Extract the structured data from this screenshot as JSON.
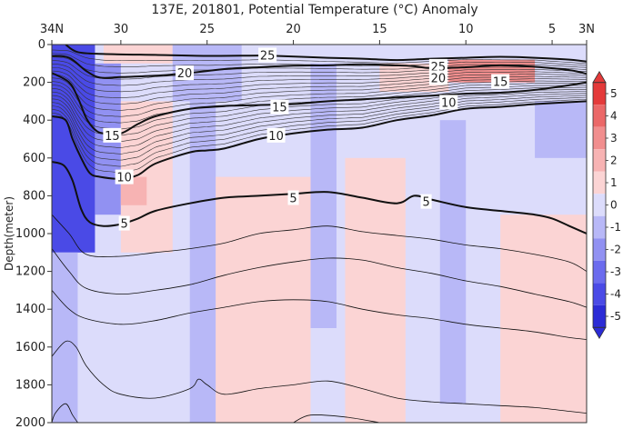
{
  "chart_data": {
    "type": "heatmap",
    "title": "137E, 201801, Potential Temperature (°C) Anomaly",
    "xlabel": "",
    "ylabel": "Depth(meter)",
    "x_axis": {
      "range": [
        34,
        3
      ],
      "ticks": [
        34,
        30,
        25,
        20,
        15,
        10,
        5,
        3
      ],
      "tick_labels": [
        "34N",
        "30",
        "25",
        "20",
        "15",
        "10",
        "5",
        "3N"
      ]
    },
    "y_axis": {
      "range": [
        0,
        2000
      ],
      "reversed": true,
      "ticks": [
        0,
        200,
        400,
        600,
        800,
        1000,
        1200,
        1400,
        1600,
        1800,
        2000
      ]
    },
    "colorbar": {
      "range": [
        -5,
        5
      ],
      "ticks": [
        -5,
        -4,
        -3,
        -2,
        -1,
        0,
        1,
        2,
        3,
        4,
        5
      ],
      "placement": "right",
      "colors": {
        "-5": "#2b2bd6",
        "-4": "#4a4ae6",
        "-3": "#6b6bee",
        "-2": "#9191f2",
        "-1": "#b8b8f7",
        "0": "#dcdcfb",
        "1": "#fbd4d4",
        "2": "#f7b3b3",
        "3": "#f18e8e",
        "4": "#eb6868",
        "5": "#e43a3a"
      }
    },
    "anomaly_regions": [
      {
        "lat": [
          34,
          31.5
        ],
        "depth": [
          0,
          1100
        ],
        "value": -4.5
      },
      {
        "lat": [
          34,
          32.5
        ],
        "depth": [
          1100,
          2000
        ],
        "value": -1.5
      },
      {
        "lat": [
          31.5,
          30
        ],
        "depth": [
          100,
          900
        ],
        "value": -2
      },
      {
        "lat": [
          31,
          27
        ],
        "depth": [
          0,
          100
        ],
        "value": 1
      },
      {
        "lat": [
          27,
          23
        ],
        "depth": [
          0,
          300
        ],
        "value": -1
      },
      {
        "lat": [
          30,
          27
        ],
        "depth": [
          300,
          1100
        ],
        "value": 1
      },
      {
        "lat": [
          26,
          24.5
        ],
        "depth": [
          100,
          2000
        ],
        "value": -1
      },
      {
        "lat": [
          24.5,
          19
        ],
        "depth": [
          700,
          2000
        ],
        "value": 1
      },
      {
        "lat": [
          19,
          17.5
        ],
        "depth": [
          100,
          1500
        ],
        "value": -1
      },
      {
        "lat": [
          17,
          13.5
        ],
        "depth": [
          600,
          2000
        ],
        "value": 1
      },
      {
        "lat": [
          11.5,
          10
        ],
        "depth": [
          400,
          1900
        ],
        "value": -1
      },
      {
        "lat": [
          8,
          3
        ],
        "depth": [
          900,
          2000
        ],
        "value": 1
      },
      {
        "lat": [
          15,
          11
        ],
        "depth": [
          100,
          250
        ],
        "value": 1
      },
      {
        "lat": [
          11,
          6
        ],
        "depth": [
          80,
          200
        ],
        "value": 3
      },
      {
        "lat": [
          6,
          3
        ],
        "depth": [
          300,
          600
        ],
        "value": -1
      },
      {
        "lat": [
          30,
          28.5
        ],
        "depth": [
          700,
          850
        ],
        "value": 2
      }
    ],
    "contours": [
      {
        "level": 25,
        "labeled": true,
        "bold": true,
        "points": [
          [
            33.2,
            0
          ],
          [
            32.5,
            40
          ],
          [
            31,
            50
          ],
          [
            28,
            55
          ],
          [
            25,
            60
          ],
          [
            22,
            58
          ],
          [
            21,
            60
          ],
          [
            18,
            70
          ],
          [
            16,
            75
          ],
          [
            14,
            82
          ],
          [
            12,
            75
          ],
          [
            10,
            70
          ],
          [
            8,
            65
          ],
          [
            6,
            70
          ],
          [
            4,
            80
          ],
          [
            3,
            90
          ]
        ]
      },
      {
        "level": 20,
        "labeled": true,
        "bold": true,
        "points": [
          [
            34,
            60
          ],
          [
            33,
            70
          ],
          [
            32,
            140
          ],
          [
            31.2,
            175
          ],
          [
            30,
            172
          ],
          [
            28,
            165
          ],
          [
            26,
            150
          ],
          [
            24,
            130
          ],
          [
            22,
            120
          ],
          [
            20,
            112
          ],
          [
            18,
            110
          ],
          [
            16,
            105
          ],
          [
            14,
            110
          ],
          [
            13,
            115
          ],
          [
            12,
            125
          ],
          [
            10,
            120
          ],
          [
            8,
            110
          ],
          [
            6,
            118
          ],
          [
            4,
            135
          ],
          [
            3,
            155
          ]
        ]
      },
      {
        "level": 15,
        "labeled": true,
        "bold": true,
        "points": [
          [
            34,
            150
          ],
          [
            33,
            200
          ],
          [
            32.5,
            280
          ],
          [
            32,
            390
          ],
          [
            31.5,
            450
          ],
          [
            31,
            470
          ],
          [
            30,
            470
          ],
          [
            29,
            420
          ],
          [
            28,
            380
          ],
          [
            26,
            340
          ],
          [
            24,
            325
          ],
          [
            22,
            320
          ],
          [
            20,
            315
          ],
          [
            18,
            300
          ],
          [
            16,
            290
          ],
          [
            14,
            280
          ],
          [
            12,
            270
          ],
          [
            10,
            260
          ],
          [
            8,
            255
          ],
          [
            6,
            240
          ],
          [
            4,
            215
          ],
          [
            3,
            200
          ]
        ]
      },
      {
        "level": 10,
        "labeled": true,
        "bold": true,
        "points": [
          [
            34,
            380
          ],
          [
            33.2,
            400
          ],
          [
            32.8,
            500
          ],
          [
            32.3,
            600
          ],
          [
            31.8,
            680
          ],
          [
            31.2,
            700
          ],
          [
            30,
            710
          ],
          [
            29,
            690
          ],
          [
            28,
            630
          ],
          [
            26,
            570
          ],
          [
            25,
            560
          ],
          [
            24,
            550
          ],
          [
            22,
            500
          ],
          [
            20,
            470
          ],
          [
            18,
            450
          ],
          [
            16,
            440
          ],
          [
            14,
            400
          ],
          [
            12,
            375
          ],
          [
            10,
            340
          ],
          [
            8,
            330
          ],
          [
            6,
            315
          ],
          [
            4,
            305
          ],
          [
            3,
            300
          ]
        ]
      },
      {
        "level": 5,
        "labeled": true,
        "bold": true,
        "points": [
          [
            34,
            620
          ],
          [
            33.3,
            640
          ],
          [
            32.8,
            720
          ],
          [
            32.3,
            870
          ],
          [
            31.8,
            940
          ],
          [
            31,
            960
          ],
          [
            30,
            950
          ],
          [
            29,
            920
          ],
          [
            28,
            880
          ],
          [
            26,
            840
          ],
          [
            24,
            810
          ],
          [
            22,
            800
          ],
          [
            20,
            790
          ],
          [
            18,
            780
          ],
          [
            16,
            810
          ],
          [
            14,
            840
          ],
          [
            13,
            800
          ],
          [
            12,
            820
          ],
          [
            10,
            860
          ],
          [
            8,
            880
          ],
          [
            6,
            900
          ],
          [
            5,
            920
          ],
          [
            4,
            960
          ],
          [
            3,
            1000
          ]
        ]
      },
      {
        "level": null,
        "labeled": false,
        "bold": false,
        "points": [
          [
            34,
            900
          ],
          [
            33,
            1000
          ],
          [
            32,
            1110
          ],
          [
            30,
            1120
          ],
          [
            28,
            1100
          ],
          [
            26,
            1080
          ],
          [
            24,
            1050
          ],
          [
            22,
            1000
          ],
          [
            20,
            980
          ],
          [
            18,
            960
          ],
          [
            16,
            990
          ],
          [
            14,
            1010
          ],
          [
            12,
            1030
          ],
          [
            10,
            1060
          ],
          [
            8,
            1080
          ],
          [
            6,
            1110
          ],
          [
            4,
            1150
          ],
          [
            3,
            1200
          ]
        ]
      },
      {
        "level": null,
        "labeled": false,
        "bold": false,
        "points": [
          [
            34,
            1080
          ],
          [
            33,
            1200
          ],
          [
            32,
            1290
          ],
          [
            30,
            1320
          ],
          [
            28,
            1300
          ],
          [
            26,
            1270
          ],
          [
            24,
            1220
          ],
          [
            22,
            1180
          ],
          [
            20,
            1150
          ],
          [
            18,
            1130
          ],
          [
            16,
            1140
          ],
          [
            14,
            1180
          ],
          [
            12,
            1210
          ],
          [
            10,
            1250
          ],
          [
            8,
            1280
          ],
          [
            6,
            1320
          ],
          [
            4,
            1360
          ],
          [
            3,
            1390
          ]
        ]
      },
      {
        "level": null,
        "labeled": false,
        "bold": false,
        "points": [
          [
            34,
            1300
          ],
          [
            33,
            1400
          ],
          [
            32,
            1450
          ],
          [
            30,
            1480
          ],
          [
            28,
            1460
          ],
          [
            26,
            1420
          ],
          [
            24,
            1390
          ],
          [
            22,
            1360
          ],
          [
            20,
            1350
          ],
          [
            18,
            1360
          ],
          [
            16,
            1400
          ],
          [
            14,
            1430
          ],
          [
            12,
            1450
          ],
          [
            10,
            1480
          ],
          [
            8,
            1500
          ],
          [
            6,
            1520
          ],
          [
            4,
            1550
          ],
          [
            3,
            1560
          ]
        ]
      },
      {
        "level": null,
        "labeled": false,
        "bold": false,
        "points": [
          [
            34,
            1650
          ],
          [
            33.2,
            1570
          ],
          [
            32.6,
            1600
          ],
          [
            32,
            1700
          ],
          [
            31,
            1800
          ],
          [
            30,
            1850
          ],
          [
            28,
            1870
          ],
          [
            26,
            1820
          ],
          [
            25.5,
            1770
          ],
          [
            25,
            1800
          ],
          [
            24,
            1850
          ],
          [
            22,
            1820
          ],
          [
            20,
            1800
          ],
          [
            18,
            1780
          ],
          [
            16,
            1820
          ],
          [
            14,
            1870
          ],
          [
            12,
            1890
          ],
          [
            10,
            1900
          ],
          [
            8,
            1910
          ],
          [
            6,
            1920
          ],
          [
            4,
            1940
          ],
          [
            3,
            1950
          ]
        ]
      },
      {
        "level": null,
        "labeled": false,
        "bold": false,
        "points": [
          [
            34,
            2000
          ],
          [
            33.8,
            1950
          ],
          [
            33.2,
            1900
          ],
          [
            32.8,
            1960
          ],
          [
            32.5,
            2000
          ]
        ]
      },
      {
        "level": null,
        "labeled": false,
        "bold": false,
        "points": [
          [
            20,
            2000
          ],
          [
            19,
            1960
          ],
          [
            17,
            1970
          ],
          [
            15,
            2000
          ]
        ]
      }
    ],
    "contour_labels": [
      {
        "text": "25",
        "lat": 21.5,
        "depth": 55
      },
      {
        "text": "25",
        "lat": 11.6,
        "depth": 115
      },
      {
        "text": "20",
        "lat": 26.3,
        "depth": 150
      },
      {
        "text": "20",
        "lat": 11.6,
        "depth": 175
      },
      {
        "text": "15",
        "lat": 8.0,
        "depth": 195
      },
      {
        "text": "15",
        "lat": 20.8,
        "depth": 330
      },
      {
        "text": "10",
        "lat": 11.0,
        "depth": 305
      },
      {
        "text": "15",
        "lat": 30.5,
        "depth": 480
      },
      {
        "text": "10",
        "lat": 21.0,
        "depth": 480
      },
      {
        "text": "10",
        "lat": 29.8,
        "depth": 700
      },
      {
        "text": "5",
        "lat": 20.0,
        "depth": 810
      },
      {
        "text": "5",
        "lat": 12.3,
        "depth": 830
      },
      {
        "text": "5",
        "lat": 29.8,
        "depth": 945
      }
    ],
    "dense_isotherms": {
      "count": 20,
      "top_base": [
        [
          34,
          10
        ],
        [
          33,
          12
        ],
        [
          32,
          40
        ],
        [
          31,
          50
        ],
        [
          28,
          55
        ],
        [
          25,
          60
        ],
        [
          22,
          58
        ],
        [
          18,
          70
        ],
        [
          14,
          82
        ],
        [
          10,
          65
        ],
        [
          6,
          70
        ],
        [
          3,
          90
        ]
      ],
      "bottom_base": [
        [
          34,
          380
        ],
        [
          33.2,
          400
        ],
        [
          32.8,
          500
        ],
        [
          32.3,
          600
        ],
        [
          31.8,
          680
        ],
        [
          31.2,
          700
        ],
        [
          30,
          710
        ],
        [
          29,
          690
        ],
        [
          28,
          630
        ],
        [
          26,
          570
        ],
        [
          24,
          550
        ],
        [
          22,
          500
        ],
        [
          20,
          470
        ],
        [
          18,
          450
        ],
        [
          16,
          440
        ],
        [
          14,
          400
        ],
        [
          12,
          375
        ],
        [
          10,
          340
        ],
        [
          8,
          330
        ],
        [
          6,
          315
        ],
        [
          4,
          305
        ],
        [
          3,
          300
        ]
      ]
    }
  }
}
